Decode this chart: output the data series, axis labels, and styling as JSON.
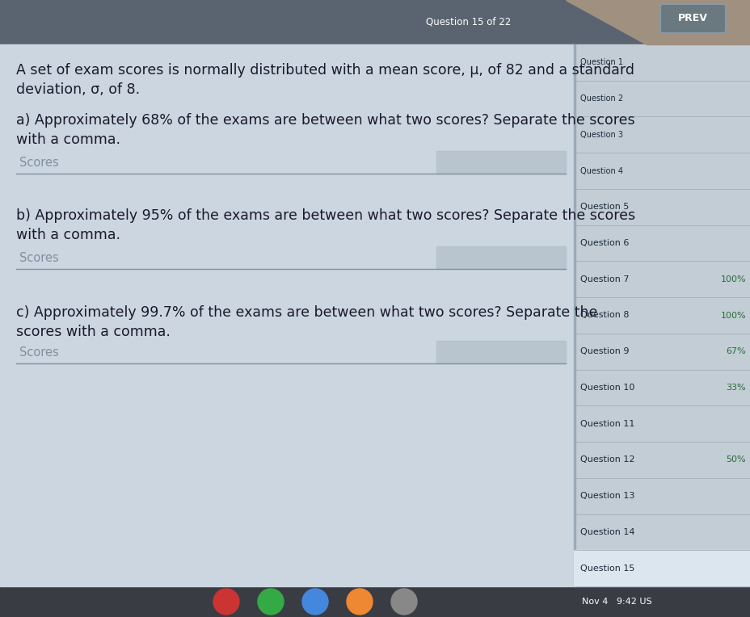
{
  "bg_color": "#cdd8e2",
  "top_bar_color": "#5a6470",
  "top_right_corner_color": "#b0a090",
  "sidebar_bg": "#c2cdd5",
  "sidebar_selected_bg": "#dce6ee",
  "main_bg": "#ccd6e0",
  "input_box_color": "#b0bec8",
  "input_line_color": "#8090a0",
  "text_color": "#1a1a2e",
  "sidebar_text_color": "#1a2a3a",
  "sidebar_percent_7_color": "#2a6a3a",
  "sidebar_percent_8_color": "#2a6a3a",
  "sidebar_percent_9_color": "#2a6a3a",
  "sidebar_percent_10_color": "#2a6a3a",
  "sidebar_percent_12_color": "#2a6a3a",
  "placeholder_color": "#8090a0",
  "top_bar_text": "Question 15 of 22",
  "prev_btn_text": "PREV",
  "intro_line1": "A set of exam scores is normally distributed with a mean score, μ, of 82 and a standard",
  "intro_line2": "deviation, σ, of 8.",
  "part_a_line1": "a) Approximately 68% of the exams are between what two scores? Separate the scores",
  "part_a_line2": "with a comma.",
  "part_a_placeholder": "Scores",
  "part_b_line1": "b) Approximately 95% of the exams are between what two scores? Separate the scores",
  "part_b_line2": "with a comma.",
  "part_b_placeholder": "Scores",
  "part_c_line1": "c) Approximately 99.7% of the exams are between what two scores? Separate the",
  "part_c_line2": "scores with a comma.",
  "part_c_placeholder": "Scores",
  "sidebar_items": [
    {
      "label": "Question 1",
      "percent": null,
      "selected": false,
      "bold": false
    },
    {
      "label": "Question 2",
      "percent": null,
      "selected": false,
      "bold": false
    },
    {
      "label": "Question 3",
      "percent": null,
      "selected": false,
      "bold": false
    },
    {
      "label": "Question 4",
      "percent": null,
      "selected": false,
      "bold": false
    },
    {
      "label": "Question 5",
      "percent": null,
      "selected": false,
      "bold": false
    },
    {
      "label": "Question 6",
      "percent": null,
      "selected": false,
      "bold": false
    },
    {
      "label": "Question 7",
      "percent": "100%",
      "selected": false,
      "bold": false
    },
    {
      "label": "Question 8",
      "percent": "100%",
      "selected": false,
      "bold": false
    },
    {
      "label": "Question 9",
      "percent": "67%",
      "selected": false,
      "bold": false
    },
    {
      "label": "Question 10",
      "percent": "33%",
      "selected": false,
      "bold": false
    },
    {
      "label": "Question 11",
      "percent": null,
      "selected": false,
      "bold": false
    },
    {
      "label": "Question 12",
      "percent": "50%",
      "selected": false,
      "bold": false
    },
    {
      "label": "Question 13",
      "percent": null,
      "selected": false,
      "bold": false
    },
    {
      "label": "Question 14",
      "percent": null,
      "selected": false,
      "bold": false
    },
    {
      "label": "Question 15",
      "percent": null,
      "selected": true,
      "bold": false
    }
  ],
  "bottom_status_text": "Nov 4   9:42 US",
  "figwidth": 9.29,
  "figheight": 7.64,
  "dpi": 100
}
